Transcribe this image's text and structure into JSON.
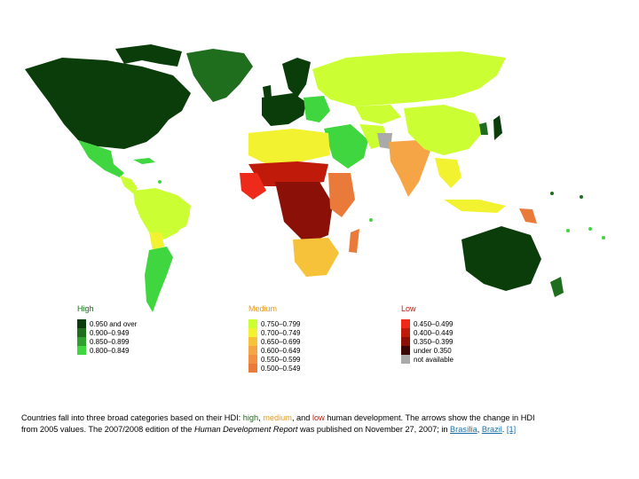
{
  "colors": {
    "high_1": "#0b3d0b",
    "high_2": "#1e6e1e",
    "high_3": "#2ea02e",
    "high_4": "#3fd63f",
    "med_1": "#ccff33",
    "med_2": "#f2f231",
    "med_3": "#f5c23a",
    "med_4": "#f5a545",
    "med_5": "#f09040",
    "med_6": "#ea7a3a",
    "low_1": "#ee2a1a",
    "low_2": "#c01a0a",
    "low_3": "#8a1008",
    "low_4": "#3b0606",
    "na": "#aaaaaa",
    "ocean": "#ffffff",
    "link": "#1a6fa8"
  },
  "legend": {
    "high": {
      "title": "High",
      "items": [
        {
          "label": "0.950 and over",
          "color": "#0b3d0b"
        },
        {
          "label": "0.900–0.949",
          "color": "#1e6e1e"
        },
        {
          "label": "0.850–0.899",
          "color": "#2ea02e"
        },
        {
          "label": "0.800–0.849",
          "color": "#3fd63f"
        }
      ]
    },
    "medium": {
      "title": "Medium",
      "items": [
        {
          "label": "0.750–0.799",
          "color": "#ccff33"
        },
        {
          "label": "0.700–0.749",
          "color": "#f2f231"
        },
        {
          "label": "0.650–0.699",
          "color": "#f5c23a"
        },
        {
          "label": "0.600–0.649",
          "color": "#f5a545"
        },
        {
          "label": "0.550–0.599",
          "color": "#f09040"
        },
        {
          "label": "0.500–0.549",
          "color": "#ea7a3a"
        }
      ]
    },
    "low": {
      "title": "Low",
      "items": [
        {
          "label": "0.450–0.499",
          "color": "#ee2a1a"
        },
        {
          "label": "0.400–0.449",
          "color": "#c01a0a"
        },
        {
          "label": "0.350–0.399",
          "color": "#8a1008"
        },
        {
          "label": "under 0.350",
          "color": "#3b0606"
        },
        {
          "label": "not available",
          "color": "#aaaaaa"
        }
      ]
    }
  },
  "caption": {
    "p1": "Countries fall into three broad categories based on their HDI:",
    "high": "high",
    "comma": ",",
    "medium": "medium",
    "and": ", and",
    "low": "low",
    "p2": "human development. The arrows show the change in HDI from 2005 values. The 2007/2008 edition of the",
    "report": "Human Development Report",
    "p3": "was published on November 27, 2007; in",
    "link1": "Brasília",
    "sep": ",",
    "link2": "Brazil",
    "dot": ".",
    "ref": "[1]"
  }
}
